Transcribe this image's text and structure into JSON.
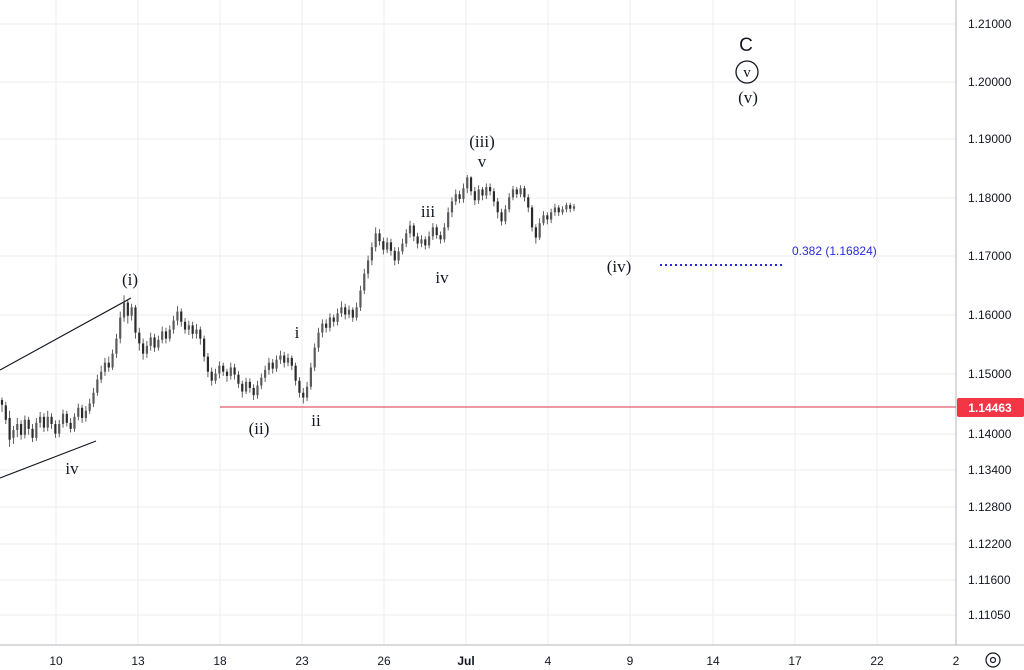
{
  "chart_data": {
    "type": "candlestick",
    "y_ticks": [
      "1.21000",
      "1.20000",
      "1.19000",
      "1.18000",
      "1.17000",
      "1.16000",
      "1.15000",
      "1.14000",
      "1.13400",
      "1.12800",
      "1.12200",
      "1.11600",
      "1.11050"
    ],
    "x_ticks": [
      "10",
      "13",
      "18",
      "23",
      "26",
      "Jul",
      "4",
      "9",
      "14",
      "17",
      "22",
      "2"
    ],
    "current_price": "1.14463",
    "horizontal_line_price": 1.14463,
    "fib_label": "0.382 (1.16824)",
    "fib_level": 1.16824,
    "wave_labels": {
      "i_major": "(i)",
      "ii_major": "(ii)",
      "iii_major": "(iii)",
      "iv_major": "(iv)",
      "v_major": "(v)",
      "c": "C",
      "v_circle": "v",
      "i_minor": "i",
      "ii_minor": "ii",
      "iii_minor": "iii",
      "iv_minor": "iv",
      "v_minor": "v",
      "iv_left": "iv"
    },
    "candles": [
      [
        1.1458,
        1.145,
        1.1462,
        1.1438
      ],
      [
        1.1449,
        1.1425,
        1.1455,
        1.1418
      ],
      [
        1.1428,
        1.1392,
        1.144,
        1.138
      ],
      [
        1.1395,
        1.1408,
        1.1415,
        1.1385
      ],
      [
        1.1408,
        1.1418,
        1.1428,
        1.1396
      ],
      [
        1.1418,
        1.14,
        1.1424,
        1.1392
      ],
      [
        1.14,
        1.1425,
        1.1432,
        1.1394
      ],
      [
        1.1425,
        1.141,
        1.143,
        1.14
      ],
      [
        1.141,
        1.1395,
        1.1418,
        1.1388
      ],
      [
        1.1395,
        1.142,
        1.1428,
        1.139
      ],
      [
        1.142,
        1.143,
        1.1438,
        1.1412
      ],
      [
        1.143,
        1.1412,
        1.1436,
        1.1405
      ],
      [
        1.1412,
        1.143,
        1.144,
        1.1406
      ],
      [
        1.143,
        1.1418,
        1.1436,
        1.141
      ],
      [
        1.1418,
        1.1402,
        1.1424,
        1.1395
      ],
      [
        1.1402,
        1.1418,
        1.1425,
        1.1396
      ],
      [
        1.1418,
        1.1435,
        1.1442,
        1.1412
      ],
      [
        1.1435,
        1.142,
        1.144,
        1.1414
      ],
      [
        1.142,
        1.141,
        1.1428,
        1.1404
      ],
      [
        1.141,
        1.143,
        1.1436,
        1.1405
      ],
      [
        1.143,
        1.1445,
        1.1452,
        1.1424
      ],
      [
        1.1445,
        1.1428,
        1.145,
        1.142
      ],
      [
        1.1428,
        1.144,
        1.1448,
        1.1422
      ],
      [
        1.144,
        1.1452,
        1.146,
        1.1435
      ],
      [
        1.1452,
        1.147,
        1.1478,
        1.1446
      ],
      [
        1.147,
        1.1492,
        1.15,
        1.1465
      ],
      [
        1.1492,
        1.1505,
        1.1515,
        1.1486
      ],
      [
        1.1505,
        1.152,
        1.1528,
        1.1498
      ],
      [
        1.152,
        1.1512,
        1.153,
        1.1505
      ],
      [
        1.1512,
        1.1535,
        1.1542,
        1.1508
      ],
      [
        1.1535,
        1.156,
        1.1568,
        1.1528
      ],
      [
        1.156,
        1.1595,
        1.1605,
        1.1552
      ],
      [
        1.1595,
        1.162,
        1.1632,
        1.1588
      ],
      [
        1.162,
        1.1598,
        1.1626,
        1.1585
      ],
      [
        1.1598,
        1.1612,
        1.1618,
        1.159
      ],
      [
        1.1612,
        1.157,
        1.1616,
        1.156
      ],
      [
        1.157,
        1.1552,
        1.1578,
        1.154
      ],
      [
        1.1552,
        1.1535,
        1.156,
        1.1525
      ],
      [
        1.1535,
        1.1548,
        1.1556,
        1.1528
      ],
      [
        1.1548,
        1.1562,
        1.157,
        1.154
      ],
      [
        1.1562,
        1.1545,
        1.1568,
        1.1538
      ],
      [
        1.1545,
        1.1558,
        1.1565,
        1.154
      ],
      [
        1.1558,
        1.1572,
        1.158,
        1.1552
      ],
      [
        1.1572,
        1.156,
        1.1578,
        1.1552
      ],
      [
        1.156,
        1.1575,
        1.1582,
        1.1555
      ],
      [
        1.1575,
        1.159,
        1.1598,
        1.1568
      ],
      [
        1.159,
        1.1605,
        1.1614,
        1.1582
      ],
      [
        1.1605,
        1.1588,
        1.161,
        1.158
      ],
      [
        1.1588,
        1.1575,
        1.1594,
        1.1568
      ],
      [
        1.1575,
        1.1582,
        1.159,
        1.1566
      ],
      [
        1.1582,
        1.1568,
        1.1588,
        1.156
      ],
      [
        1.1568,
        1.1575,
        1.1584,
        1.156
      ],
      [
        1.1575,
        1.156,
        1.158,
        1.155
      ],
      [
        1.156,
        1.153,
        1.1565,
        1.1522
      ],
      [
        1.153,
        1.1505,
        1.1536,
        1.1496
      ],
      [
        1.1505,
        1.149,
        1.1512,
        1.1482
      ],
      [
        1.149,
        1.1502,
        1.151,
        1.1485
      ],
      [
        1.1502,
        1.1515,
        1.1522,
        1.1494
      ],
      [
        1.1515,
        1.1505,
        1.152,
        1.1498
      ],
      [
        1.1505,
        1.1498,
        1.151,
        1.1488
      ],
      [
        1.1498,
        1.1512,
        1.152,
        1.1492
      ],
      [
        1.1512,
        1.15,
        1.1518,
        1.1492
      ],
      [
        1.15,
        1.1485,
        1.1506,
        1.1478
      ],
      [
        1.1485,
        1.1472,
        1.149,
        1.1462
      ],
      [
        1.1472,
        1.1488,
        1.1495,
        1.1468
      ],
      [
        1.1488,
        1.1478,
        1.1494,
        1.147
      ],
      [
        1.1478,
        1.1466,
        1.1484,
        1.1458
      ],
      [
        1.1466,
        1.1482,
        1.149,
        1.146
      ],
      [
        1.1482,
        1.1495,
        1.1502,
        1.1476
      ],
      [
        1.1495,
        1.1508,
        1.1515,
        1.1488
      ],
      [
        1.1508,
        1.152,
        1.1528,
        1.15
      ],
      [
        1.152,
        1.151,
        1.1526,
        1.1502
      ],
      [
        1.151,
        1.1525,
        1.1532,
        1.1505
      ],
      [
        1.1525,
        1.1532,
        1.154,
        1.1518
      ],
      [
        1.1532,
        1.152,
        1.1538,
        1.1512
      ],
      [
        1.152,
        1.1528,
        1.1535,
        1.1514
      ],
      [
        1.1528,
        1.1515,
        1.1532,
        1.1508
      ],
      [
        1.1515,
        1.149,
        1.152,
        1.1482
      ],
      [
        1.149,
        1.147,
        1.1496,
        1.1462
      ],
      [
        1.147,
        1.1462,
        1.1478,
        1.1452
      ],
      [
        1.1462,
        1.148,
        1.1488,
        1.1456
      ],
      [
        1.148,
        1.1512,
        1.152,
        1.1475
      ],
      [
        1.1512,
        1.1545,
        1.1552,
        1.1506
      ],
      [
        1.1545,
        1.157,
        1.1578,
        1.1538
      ],
      [
        1.157,
        1.1585,
        1.1592,
        1.1562
      ],
      [
        1.1585,
        1.1578,
        1.1592,
        1.157
      ],
      [
        1.1578,
        1.1595,
        1.1602,
        1.1572
      ],
      [
        1.1595,
        1.1588,
        1.16,
        1.158
      ],
      [
        1.1588,
        1.1602,
        1.161,
        1.1582
      ],
      [
        1.1602,
        1.1612,
        1.1622,
        1.1596
      ],
      [
        1.1612,
        1.16,
        1.1618,
        1.1592
      ],
      [
        1.16,
        1.1608,
        1.1615,
        1.1594
      ],
      [
        1.1608,
        1.1595,
        1.1612,
        1.1588
      ],
      [
        1.1595,
        1.1612,
        1.162,
        1.159
      ],
      [
        1.1612,
        1.164,
        1.1648,
        1.1606
      ],
      [
        1.164,
        1.1668,
        1.1676,
        1.1634
      ],
      [
        1.1668,
        1.169,
        1.1698,
        1.166
      ],
      [
        1.169,
        1.1712,
        1.172,
        1.1682
      ],
      [
        1.1712,
        1.1735,
        1.1745,
        1.1705
      ],
      [
        1.1735,
        1.1722,
        1.1742,
        1.1715
      ],
      [
        1.1722,
        1.1708,
        1.1728,
        1.17
      ],
      [
        1.1708,
        1.172,
        1.1728,
        1.1702
      ],
      [
        1.172,
        1.1706,
        1.1726,
        1.1698
      ],
      [
        1.1706,
        1.169,
        1.1712,
        1.1682
      ],
      [
        1.169,
        1.1705,
        1.1712,
        1.1684
      ],
      [
        1.1705,
        1.1718,
        1.1726,
        1.17
      ],
      [
        1.1718,
        1.1735,
        1.1742,
        1.1712
      ],
      [
        1.1735,
        1.1748,
        1.1756,
        1.1728
      ],
      [
        1.1748,
        1.173,
        1.1752,
        1.1722
      ],
      [
        1.173,
        1.1718,
        1.1736,
        1.171
      ],
      [
        1.1718,
        1.1725,
        1.1732,
        1.1712
      ],
      [
        1.1725,
        1.1715,
        1.173,
        1.1708
      ],
      [
        1.1715,
        1.173,
        1.1738,
        1.171
      ],
      [
        1.173,
        1.1745,
        1.1752,
        1.1724
      ],
      [
        1.1745,
        1.1732,
        1.175,
        1.1726
      ],
      [
        1.1732,
        1.1725,
        1.1738,
        1.1718
      ],
      [
        1.1725,
        1.1745,
        1.1752,
        1.172
      ],
      [
        1.1745,
        1.177,
        1.1778,
        1.174
      ],
      [
        1.177,
        1.1788,
        1.1795,
        1.1762
      ],
      [
        1.1788,
        1.18,
        1.1808,
        1.1782
      ],
      [
        1.18,
        1.1792,
        1.1806,
        1.1785
      ],
      [
        1.1792,
        1.181,
        1.1818,
        1.1786
      ],
      [
        1.181,
        1.1828,
        1.1832,
        1.1802
      ],
      [
        1.1828,
        1.1805,
        1.183,
        1.1798
      ],
      [
        1.1805,
        1.179,
        1.1812,
        1.1782
      ],
      [
        1.179,
        1.1808,
        1.1815,
        1.1784
      ],
      [
        1.1808,
        1.1798,
        1.1812,
        1.179
      ],
      [
        1.1798,
        1.1812,
        1.1818,
        1.1792
      ],
      [
        1.1812,
        1.1805,
        1.1818,
        1.1798
      ],
      [
        1.1805,
        1.1788,
        1.181,
        1.178
      ],
      [
        1.1788,
        1.177,
        1.1794,
        1.176
      ],
      [
        1.177,
        1.1755,
        1.1776,
        1.1748
      ],
      [
        1.1755,
        1.1775,
        1.1782,
        1.175
      ],
      [
        1.1775,
        1.1795,
        1.1802,
        1.177
      ],
      [
        1.1795,
        1.1808,
        1.1814,
        1.179
      ],
      [
        1.1808,
        1.18,
        1.1812,
        1.1794
      ],
      [
        1.18,
        1.181,
        1.1815,
        1.1795
      ],
      [
        1.181,
        1.1795,
        1.1814,
        1.1788
      ],
      [
        1.1795,
        1.1778,
        1.18,
        1.177
      ],
      [
        1.1778,
        1.1745,
        1.1782,
        1.1738
      ],
      [
        1.1745,
        1.1728,
        1.175,
        1.1718
      ],
      [
        1.1728,
        1.1752,
        1.176,
        1.1724
      ],
      [
        1.1752,
        1.1765,
        1.1772,
        1.1748
      ],
      [
        1.1765,
        1.1758,
        1.177,
        1.175
      ],
      [
        1.1758,
        1.177,
        1.1776,
        1.1752
      ],
      [
        1.177,
        1.1778,
        1.1784,
        1.1764
      ],
      [
        1.1778,
        1.177,
        1.1782,
        1.1764
      ],
      [
        1.177,
        1.1775,
        1.178,
        1.1766
      ],
      [
        1.1775,
        1.1782,
        1.1786,
        1.177
      ],
      [
        1.1782,
        1.1776,
        1.1786,
        1.177
      ],
      [
        1.1776,
        1.178,
        1.1784,
        1.1772
      ]
    ]
  }
}
